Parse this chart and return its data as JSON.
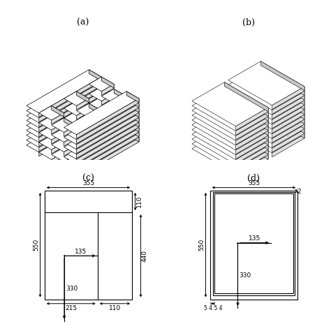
{
  "label_a": "(a)",
  "label_b": "(b)",
  "label_c": "(c)",
  "label_d": "(d)",
  "dim_355": "355",
  "dim_550": "550",
  "dim_440": "440",
  "dim_110": "110",
  "dim_135": "135",
  "dim_330": "330",
  "dim_2": "2",
  "dim_c_bot_left": "215",
  "dim_c_bot_right": "110",
  "dim_d_bottom": "5 4 5 4",
  "bg_color": "#ffffff",
  "line_color": "#000000"
}
